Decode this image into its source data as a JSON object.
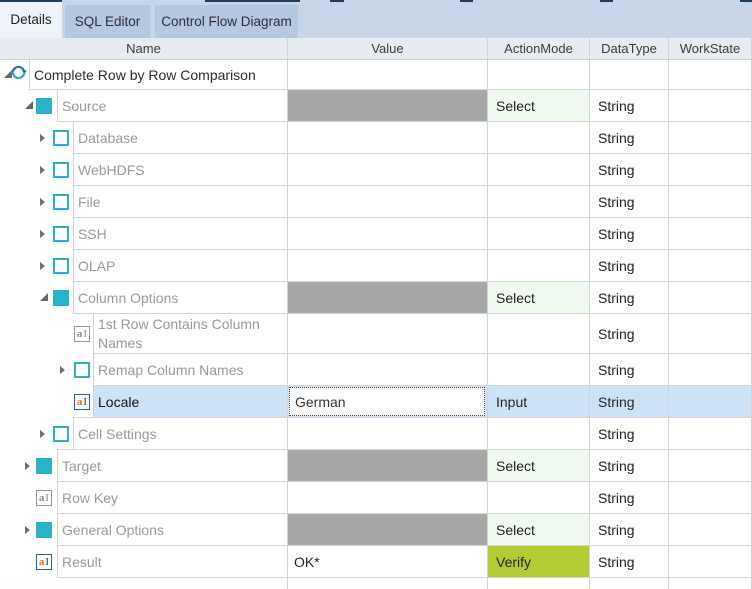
{
  "tabs": [
    {
      "label": "Details",
      "active": true
    },
    {
      "label": "SQL Editor",
      "active": false
    },
    {
      "label": "Control Flow Diagram",
      "active": false
    }
  ],
  "columns": [
    "Name",
    "Value",
    "ActionMode",
    "DataType",
    "WorkState"
  ],
  "rows": [
    {
      "name": "Complete Row by Row Comparison",
      "level": 0,
      "icon": "refresh-icon",
      "expand": "expanded",
      "value": "",
      "value_fill": "",
      "action": "",
      "action_style": "",
      "datatype": "",
      "workstate": "",
      "selected": false,
      "tall": false
    },
    {
      "name": "Source",
      "level": 1,
      "icon": "module-icon",
      "expand": "expanded",
      "value": "",
      "value_fill": "gray",
      "action": "Select",
      "action_style": "select",
      "datatype": "String",
      "workstate": "",
      "selected": false,
      "tall": false
    },
    {
      "name": "Database",
      "level": 2,
      "icon": "checkbox-icon",
      "expand": "collapsed",
      "value": "",
      "value_fill": "",
      "action": "",
      "action_style": "",
      "datatype": "String",
      "workstate": "",
      "selected": false,
      "tall": false
    },
    {
      "name": "WebHDFS",
      "level": 2,
      "icon": "checkbox-icon",
      "expand": "collapsed",
      "value": "",
      "value_fill": "",
      "action": "",
      "action_style": "",
      "datatype": "String",
      "workstate": "",
      "selected": false,
      "tall": false
    },
    {
      "name": "File",
      "level": 2,
      "icon": "checkbox-icon",
      "expand": "collapsed",
      "value": "",
      "value_fill": "",
      "action": "",
      "action_style": "",
      "datatype": "String",
      "workstate": "",
      "selected": false,
      "tall": false
    },
    {
      "name": "SSH",
      "level": 2,
      "icon": "checkbox-icon",
      "expand": "collapsed",
      "value": "",
      "value_fill": "",
      "action": "",
      "action_style": "",
      "datatype": "String",
      "workstate": "",
      "selected": false,
      "tall": false
    },
    {
      "name": "OLAP",
      "level": 2,
      "icon": "checkbox-icon",
      "expand": "collapsed",
      "value": "",
      "value_fill": "",
      "action": "",
      "action_style": "",
      "datatype": "String",
      "workstate": "",
      "selected": false,
      "tall": false
    },
    {
      "name": "Column Options",
      "level": 2,
      "icon": "module-icon",
      "expand": "expanded",
      "value": "",
      "value_fill": "gray",
      "action": "Select",
      "action_style": "select",
      "datatype": "String",
      "workstate": "",
      "selected": false,
      "tall": false
    },
    {
      "name": "1st Row Contains Column Names",
      "level": 3,
      "icon": "text-field-icon",
      "expand": "none",
      "value": "",
      "value_fill": "",
      "action": "",
      "action_style": "",
      "datatype": "String",
      "workstate": "",
      "selected": false,
      "tall": true
    },
    {
      "name": "Remap Column Names",
      "level": 3,
      "icon": "checkbox-icon",
      "expand": "collapsed",
      "value": "",
      "value_fill": "",
      "action": "",
      "action_style": "",
      "datatype": "String",
      "workstate": "",
      "selected": false,
      "tall": false
    },
    {
      "name": "Locale",
      "level": 3,
      "icon": "text-field-active-icon",
      "expand": "none",
      "value": "German",
      "value_editor": true,
      "value_fill": "",
      "action": "Input",
      "action_style": "input",
      "datatype": "String",
      "workstate": "",
      "selected": true,
      "tall": false
    },
    {
      "name": "Cell Settings",
      "level": 2,
      "icon": "checkbox-icon",
      "expand": "collapsed",
      "value": "",
      "value_fill": "",
      "action": "",
      "action_style": "",
      "datatype": "String",
      "workstate": "",
      "selected": false,
      "tall": false
    },
    {
      "name": "Target",
      "level": 1,
      "icon": "module-icon",
      "expand": "collapsed",
      "value": "",
      "value_fill": "gray",
      "action": "Select",
      "action_style": "select",
      "datatype": "String",
      "workstate": "",
      "selected": false,
      "tall": false
    },
    {
      "name": "Row Key",
      "level": 1,
      "icon": "text-field-icon",
      "expand": "none",
      "value": "",
      "value_fill": "",
      "action": "",
      "action_style": "",
      "datatype": "String",
      "workstate": "",
      "selected": false,
      "tall": false
    },
    {
      "name": "General Options",
      "level": 1,
      "icon": "module-icon",
      "expand": "collapsed",
      "value": "",
      "value_fill": "gray",
      "action": "Select",
      "action_style": "select",
      "datatype": "String",
      "workstate": "",
      "selected": false,
      "tall": false
    },
    {
      "name": "Result",
      "level": 1,
      "icon": "text-field-active-icon",
      "expand": "none",
      "value": "OK*",
      "value_fill": "",
      "action": "Verify",
      "action_style": "verify",
      "datatype": "String",
      "workstate": "",
      "selected": false,
      "tall": false
    }
  ],
  "icons": {
    "refresh-icon": "circular blue sync arrows",
    "module-icon": "filled teal square",
    "checkbox-icon": "empty teal-bordered checkbox",
    "text-field-icon": "aI",
    "expanded-triangle": "◢",
    "collapsed-triangle": "▶"
  },
  "colors": {
    "strip_bg": "#c6d5e8",
    "tab_inactive": "#b4c9e0",
    "tab_active": "#eef3fa",
    "dash": "#1c3c62",
    "header_bg": "#e7ecf3",
    "grid": "#d4d4d4",
    "teal": "#2ab2c6",
    "value_gray": "#a6a6a6",
    "select_bg": "#f0f9f0",
    "verify_bg": "#b3cc35",
    "selected_bg": "#cbe2f7"
  }
}
